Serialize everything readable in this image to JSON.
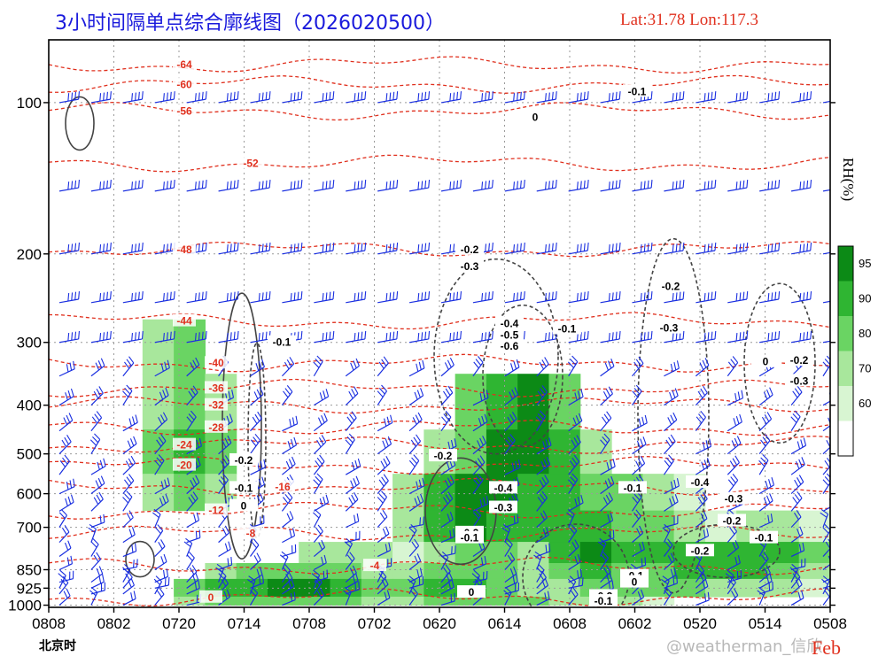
{
  "header": {
    "title": "3小时间隔单点综合廓线图（2026020500）",
    "latlon": "Lat:31.78  Lon:117.3",
    "timezone_label": "北京时",
    "watermark": "@weatherman_信欣",
    "month_label": "Feb"
  },
  "colors": {
    "temperature_contour": "#e0301e",
    "omega_contour": "#444444",
    "wind_barb": "#1a2fe0",
    "rh_fill_60": "#d8f5d2",
    "rh_fill_70": "#a8e79c",
    "rh_fill_80": "#6ad463",
    "rh_fill_90": "#2fb532",
    "rh_fill_95": "#0c8a16"
  },
  "chart_data": {
    "type": "heatmap",
    "x_axis_reversed": true,
    "x_ticks": [
      "0808",
      "0802",
      "0720",
      "0714",
      "0708",
      "0702",
      "0620",
      "0614",
      "0608",
      "0602",
      "0520",
      "0514",
      "0508"
    ],
    "y_ticks": [
      100,
      200,
      300,
      400,
      500,
      600,
      700,
      850,
      925,
      1000
    ],
    "y_range_hpa": [
      75,
      1010
    ],
    "legend_title": "RH(%)",
    "rh_levels": [
      60,
      70,
      80,
      90,
      95
    ],
    "rh_grid": {
      "comment_rows_are_pressure_levels": [
        300,
        400,
        500,
        600,
        700,
        800,
        850,
        925,
        1000
      ],
      "rows": [
        [
          0,
          0,
          0,
          70,
          80,
          0,
          0,
          0,
          0,
          0,
          0,
          0,
          0,
          0,
          0,
          0,
          0,
          0,
          0,
          0,
          0,
          0,
          0,
          0,
          0
        ],
        [
          0,
          0,
          0,
          70,
          85,
          70,
          0,
          0,
          0,
          0,
          0,
          0,
          0,
          80,
          92,
          95,
          85,
          0,
          0,
          0,
          0,
          0,
          0,
          0,
          0
        ],
        [
          0,
          0,
          0,
          80,
          93,
          80,
          0,
          0,
          0,
          0,
          0,
          0,
          70,
          85,
          95,
          96,
          90,
          75,
          0,
          0,
          0,
          0,
          0,
          0,
          0
        ],
        [
          0,
          0,
          0,
          70,
          85,
          70,
          0,
          0,
          0,
          0,
          0,
          70,
          92,
          95,
          96,
          92,
          90,
          85,
          80,
          70,
          60,
          0,
          0,
          0,
          0
        ],
        [
          0,
          0,
          0,
          0,
          0,
          0,
          0,
          0,
          0,
          0,
          0,
          70,
          92,
          95,
          92,
          90,
          93,
          92,
          85,
          80,
          70,
          65,
          70,
          75,
          60
        ],
        [
          0,
          0,
          0,
          0,
          0,
          0,
          0,
          0,
          70,
          75,
          70,
          65,
          70,
          80,
          85,
          70,
          92,
          95,
          93,
          92,
          94,
          90,
          92,
          93,
          80
        ],
        [
          0,
          0,
          0,
          0,
          0,
          75,
          80,
          82,
          85,
          80,
          70,
          70,
          80,
          85,
          85,
          70,
          85,
          90,
          85,
          88,
          90,
          92,
          90,
          85,
          70
        ],
        [
          0,
          0,
          0,
          0,
          82,
          92,
          94,
          95,
          95,
          92,
          80,
          80,
          90,
          90,
          85,
          70,
          75,
          80,
          80,
          82,
          80,
          75,
          70,
          70,
          60
        ],
        [
          0,
          0,
          0,
          0,
          70,
          80,
          80,
          82,
          85,
          80,
          75,
          78,
          82,
          84,
          82,
          80,
          75,
          70,
          70,
          65,
          0,
          0,
          0,
          0,
          0
        ]
      ]
    },
    "temperature_labels": [
      -64,
      -60,
      -56,
      -52,
      -48,
      -44,
      -40,
      -36,
      -32,
      -28,
      -24,
      -20,
      -16,
      -12,
      -8,
      -4,
      0
    ],
    "omega_labels": [
      -0.6,
      -0.5,
      -0.4,
      -0.3,
      -0.2,
      -0.1,
      0
    ]
  }
}
